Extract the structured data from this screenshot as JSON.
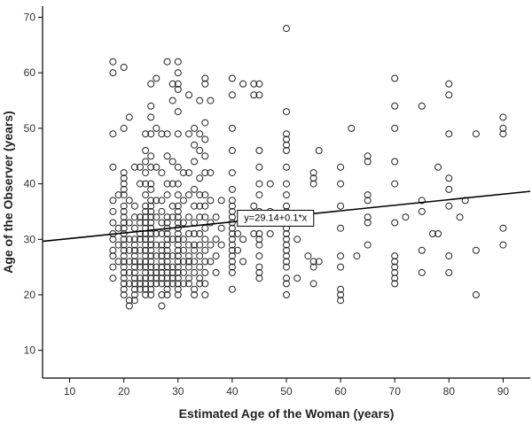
{
  "chart_data": {
    "type": "scatter",
    "xlabel": "Estimated Age of the Woman (years)",
    "ylabel": "Age of the Observer (years)",
    "xlim": [
      5,
      95
    ],
    "ylim": [
      5,
      72
    ],
    "xticks": [
      "10",
      "20",
      "30",
      "40",
      "50",
      "60",
      "70",
      "80",
      "90"
    ],
    "yticks": [
      "10",
      "20",
      "30",
      "40",
      "50",
      "60",
      "70"
    ],
    "grid": false,
    "marker": "hollow-circle",
    "regression": {
      "intercept": 29.14,
      "slope": 0.1,
      "label": "y=29.14+0.1*x",
      "label_at": [
        48,
        33.8
      ]
    },
    "points": [
      [
        18,
        62
      ],
      [
        18,
        60
      ],
      [
        20,
        61
      ],
      [
        18,
        49
      ],
      [
        18,
        43
      ],
      [
        18,
        37
      ],
      [
        18,
        35
      ],
      [
        18,
        33
      ],
      [
        18,
        31
      ],
      [
        18,
        30
      ],
      [
        18,
        28
      ],
      [
        18,
        27
      ],
      [
        18,
        25
      ],
      [
        18,
        23
      ],
      [
        19,
        38
      ],
      [
        19,
        32
      ],
      [
        19,
        29
      ],
      [
        19,
        26
      ],
      [
        20,
        50
      ],
      [
        20,
        42
      ],
      [
        20,
        41
      ],
      [
        20,
        40
      ],
      [
        20,
        39
      ],
      [
        20,
        38
      ],
      [
        20,
        36
      ],
      [
        20,
        35
      ],
      [
        20,
        34
      ],
      [
        20,
        33
      ],
      [
        20,
        32
      ],
      [
        20,
        31
      ],
      [
        20,
        30
      ],
      [
        20,
        29
      ],
      [
        20,
        28
      ],
      [
        20,
        27
      ],
      [
        20,
        26
      ],
      [
        20,
        25
      ],
      [
        20,
        24
      ],
      [
        20,
        23
      ],
      [
        20,
        22
      ],
      [
        20,
        21
      ],
      [
        20,
        20
      ],
      [
        21,
        52
      ],
      [
        21,
        37
      ],
      [
        21,
        33
      ],
      [
        21,
        30
      ],
      [
        21,
        28
      ],
      [
        21,
        26
      ],
      [
        21,
        24
      ],
      [
        21,
        22
      ],
      [
        21,
        19
      ],
      [
        21,
        18
      ],
      [
        22,
        43
      ],
      [
        22,
        36
      ],
      [
        22,
        34
      ],
      [
        22,
        32
      ],
      [
        22,
        30
      ],
      [
        22,
        29
      ],
      [
        22,
        28
      ],
      [
        22,
        27
      ],
      [
        22,
        26
      ],
      [
        22,
        25
      ],
      [
        22,
        24
      ],
      [
        22,
        23
      ],
      [
        22,
        22
      ],
      [
        22,
        21
      ],
      [
        22,
        20
      ],
      [
        22,
        19
      ],
      [
        23,
        43
      ],
      [
        23,
        40
      ],
      [
        23,
        34
      ],
      [
        23,
        33
      ],
      [
        23,
        31
      ],
      [
        23,
        30
      ],
      [
        23,
        28
      ],
      [
        23,
        26
      ],
      [
        23,
        25
      ],
      [
        23,
        23
      ],
      [
        23,
        22
      ],
      [
        23,
        21
      ],
      [
        24,
        49
      ],
      [
        24,
        46
      ],
      [
        24,
        44
      ],
      [
        24,
        42
      ],
      [
        24,
        40
      ],
      [
        24,
        38
      ],
      [
        24,
        36
      ],
      [
        24,
        35
      ],
      [
        24,
        34
      ],
      [
        24,
        33
      ],
      [
        24,
        32
      ],
      [
        24,
        31
      ],
      [
        24,
        30
      ],
      [
        24,
        29
      ],
      [
        24,
        28
      ],
      [
        24,
        27
      ],
      [
        24,
        26
      ],
      [
        24,
        25
      ],
      [
        24,
        24
      ],
      [
        24,
        23
      ],
      [
        24,
        22
      ],
      [
        24,
        21
      ],
      [
        24,
        20
      ],
      [
        25,
        58
      ],
      [
        25,
        54
      ],
      [
        25,
        52
      ],
      [
        25,
        49
      ],
      [
        25,
        45
      ],
      [
        25,
        43
      ],
      [
        25,
        40
      ],
      [
        25,
        39
      ],
      [
        25,
        37
      ],
      [
        25,
        36
      ],
      [
        25,
        35
      ],
      [
        25,
        34
      ],
      [
        25,
        33
      ],
      [
        25,
        32
      ],
      [
        25,
        31
      ],
      [
        25,
        30
      ],
      [
        25,
        29
      ],
      [
        25,
        28
      ],
      [
        25,
        27
      ],
      [
        25,
        26
      ],
      [
        25,
        25
      ],
      [
        25,
        24
      ],
      [
        25,
        23
      ],
      [
        25,
        22
      ],
      [
        25,
        21
      ],
      [
        25,
        20
      ],
      [
        26,
        59
      ],
      [
        26,
        50
      ],
      [
        26,
        43
      ],
      [
        26,
        37
      ],
      [
        26,
        34
      ],
      [
        26,
        31
      ],
      [
        26,
        29
      ],
      [
        26,
        27
      ],
      [
        26,
        25
      ],
      [
        26,
        24
      ],
      [
        26,
        23
      ],
      [
        26,
        22
      ],
      [
        27,
        49
      ],
      [
        27,
        42
      ],
      [
        27,
        37
      ],
      [
        27,
        35
      ],
      [
        27,
        33
      ],
      [
        27,
        31
      ],
      [
        27,
        29
      ],
      [
        27,
        28
      ],
      [
        27,
        27
      ],
      [
        27,
        26
      ],
      [
        27,
        25
      ],
      [
        27,
        24
      ],
      [
        27,
        23
      ],
      [
        27,
        22
      ],
      [
        27,
        20
      ],
      [
        27,
        18
      ],
      [
        28,
        62
      ],
      [
        28,
        49
      ],
      [
        28,
        45
      ],
      [
        28,
        40
      ],
      [
        28,
        38
      ],
      [
        28,
        34
      ],
      [
        28,
        33
      ],
      [
        28,
        32
      ],
      [
        28,
        31
      ],
      [
        28,
        30
      ],
      [
        28,
        29
      ],
      [
        28,
        28
      ],
      [
        28,
        27
      ],
      [
        28,
        26
      ],
      [
        28,
        25
      ],
      [
        28,
        24
      ],
      [
        28,
        23
      ],
      [
        28,
        22
      ],
      [
        28,
        21
      ],
      [
        28,
        20
      ],
      [
        29,
        58
      ],
      [
        29,
        55
      ],
      [
        29,
        44
      ],
      [
        29,
        40
      ],
      [
        29,
        36
      ],
      [
        29,
        34
      ],
      [
        29,
        30
      ],
      [
        29,
        27
      ],
      [
        29,
        25
      ],
      [
        29,
        24
      ],
      [
        29,
        23
      ],
      [
        29,
        22
      ],
      [
        30,
        62
      ],
      [
        30,
        60
      ],
      [
        30,
        58
      ],
      [
        30,
        57
      ],
      [
        30,
        53
      ],
      [
        30,
        49
      ],
      [
        30,
        43
      ],
      [
        30,
        40
      ],
      [
        30,
        38
      ],
      [
        30,
        36
      ],
      [
        30,
        35
      ],
      [
        30,
        34
      ],
      [
        30,
        33
      ],
      [
        30,
        32
      ],
      [
        30,
        31
      ],
      [
        30,
        30
      ],
      [
        30,
        29
      ],
      [
        30,
        28
      ],
      [
        30,
        27
      ],
      [
        30,
        26
      ],
      [
        30,
        25
      ],
      [
        30,
        24
      ],
      [
        30,
        23
      ],
      [
        30,
        22
      ],
      [
        30,
        21
      ],
      [
        30,
        20
      ],
      [
        31,
        42
      ],
      [
        31,
        37
      ],
      [
        31,
        33
      ],
      [
        31,
        30
      ],
      [
        31,
        28
      ],
      [
        31,
        26
      ],
      [
        31,
        24
      ],
      [
        31,
        22
      ],
      [
        32,
        56
      ],
      [
        32,
        49
      ],
      [
        32,
        42
      ],
      [
        32,
        38
      ],
      [
        32,
        34
      ],
      [
        32,
        31
      ],
      [
        32,
        29
      ],
      [
        32,
        27
      ],
      [
        32,
        26
      ],
      [
        32,
        25
      ],
      [
        32,
        23
      ],
      [
        32,
        22
      ],
      [
        33,
        50
      ],
      [
        33,
        47
      ],
      [
        33,
        44
      ],
      [
        33,
        39
      ],
      [
        33,
        36
      ],
      [
        33,
        33
      ],
      [
        33,
        31
      ],
      [
        33,
        29
      ],
      [
        33,
        28
      ],
      [
        33,
        26
      ],
      [
        33,
        24
      ],
      [
        33,
        21
      ],
      [
        33,
        20
      ],
      [
        34,
        55
      ],
      [
        34,
        49
      ],
      [
        34,
        46
      ],
      [
        34,
        41
      ],
      [
        34,
        38
      ],
      [
        34,
        36
      ],
      [
        34,
        34
      ],
      [
        34,
        31
      ],
      [
        34,
        29
      ],
      [
        34,
        27
      ],
      [
        34,
        25
      ],
      [
        34,
        23
      ],
      [
        34,
        22
      ],
      [
        35,
        59
      ],
      [
        35,
        58
      ],
      [
        35,
        51
      ],
      [
        35,
        48
      ],
      [
        35,
        45
      ],
      [
        35,
        42
      ],
      [
        35,
        38
      ],
      [
        35,
        36
      ],
      [
        35,
        34
      ],
      [
        35,
        32
      ],
      [
        35,
        30
      ],
      [
        35,
        28
      ],
      [
        35,
        26
      ],
      [
        35,
        24
      ],
      [
        35,
        22
      ],
      [
        35,
        20
      ],
      [
        36,
        55
      ],
      [
        36,
        42
      ],
      [
        36,
        37
      ],
      [
        36,
        33
      ],
      [
        36,
        29
      ],
      [
        36,
        26
      ],
      [
        37,
        34
      ],
      [
        37,
        30
      ],
      [
        37,
        27
      ],
      [
        37,
        24
      ],
      [
        38,
        37
      ],
      [
        38,
        32
      ],
      [
        38,
        29
      ],
      [
        40,
        59
      ],
      [
        40,
        56
      ],
      [
        40,
        50
      ],
      [
        40,
        46
      ],
      [
        40,
        42
      ],
      [
        40,
        39
      ],
      [
        40,
        37
      ],
      [
        40,
        36
      ],
      [
        40,
        35
      ],
      [
        40,
        34
      ],
      [
        40,
        33
      ],
      [
        40,
        32
      ],
      [
        40,
        31
      ],
      [
        40,
        30
      ],
      [
        40,
        29
      ],
      [
        40,
        28
      ],
      [
        40,
        27
      ],
      [
        40,
        26
      ],
      [
        40,
        25
      ],
      [
        40,
        24
      ],
      [
        40,
        21
      ],
      [
        41,
        31
      ],
      [
        41,
        28
      ],
      [
        42,
        58
      ],
      [
        42,
        30
      ],
      [
        42,
        26
      ],
      [
        44,
        58
      ],
      [
        44,
        56
      ],
      [
        44,
        36
      ],
      [
        44,
        31
      ],
      [
        45,
        58
      ],
      [
        45,
        56
      ],
      [
        45,
        46
      ],
      [
        45,
        43
      ],
      [
        45,
        40
      ],
      [
        45,
        38
      ],
      [
        45,
        35
      ],
      [
        45,
        33
      ],
      [
        45,
        31
      ],
      [
        45,
        30
      ],
      [
        45,
        29
      ],
      [
        45,
        27
      ],
      [
        45,
        25
      ],
      [
        45,
        24
      ],
      [
        45,
        23
      ],
      [
        47,
        40
      ],
      [
        47,
        35
      ],
      [
        47,
        31
      ],
      [
        50,
        68
      ],
      [
        50,
        53
      ],
      [
        50,
        49
      ],
      [
        50,
        48
      ],
      [
        50,
        47
      ],
      [
        50,
        46
      ],
      [
        50,
        43
      ],
      [
        50,
        40
      ],
      [
        50,
        38
      ],
      [
        50,
        36
      ],
      [
        50,
        35
      ],
      [
        50,
        34
      ],
      [
        50,
        33
      ],
      [
        50,
        32
      ],
      [
        50,
        31
      ],
      [
        50,
        30
      ],
      [
        50,
        29
      ],
      [
        50,
        28
      ],
      [
        50,
        27
      ],
      [
        50,
        26
      ],
      [
        50,
        25
      ],
      [
        50,
        23
      ],
      [
        50,
        22
      ],
      [
        50,
        20
      ],
      [
        52,
        30
      ],
      [
        52,
        23
      ],
      [
        54,
        27
      ],
      [
        55,
        42
      ],
      [
        55,
        41
      ],
      [
        55,
        40
      ],
      [
        55,
        26
      ],
      [
        55,
        25
      ],
      [
        55,
        22
      ],
      [
        56,
        46
      ],
      [
        56,
        26
      ],
      [
        60,
        43
      ],
      [
        60,
        40
      ],
      [
        60,
        36
      ],
      [
        60,
        32
      ],
      [
        60,
        27
      ],
      [
        60,
        25
      ],
      [
        60,
        21
      ],
      [
        60,
        20
      ],
      [
        60,
        19
      ],
      [
        62,
        50
      ],
      [
        63,
        27
      ],
      [
        65,
        45
      ],
      [
        65,
        44
      ],
      [
        65,
        38
      ],
      [
        65,
        37
      ],
      [
        65,
        34
      ],
      [
        65,
        33
      ],
      [
        65,
        29
      ],
      [
        70,
        59
      ],
      [
        70,
        54
      ],
      [
        70,
        50
      ],
      [
        70,
        44
      ],
      [
        70,
        40
      ],
      [
        70,
        33
      ],
      [
        70,
        27
      ],
      [
        70,
        26
      ],
      [
        70,
        25
      ],
      [
        70,
        24
      ],
      [
        70,
        23
      ],
      [
        70,
        22
      ],
      [
        72,
        34
      ],
      [
        75,
        54
      ],
      [
        75,
        37
      ],
      [
        75,
        35
      ],
      [
        75,
        28
      ],
      [
        75,
        24
      ],
      [
        77,
        31
      ],
      [
        78,
        43
      ],
      [
        78,
        31
      ],
      [
        80,
        58
      ],
      [
        80,
        56
      ],
      [
        80,
        49
      ],
      [
        80,
        41
      ],
      [
        80,
        39
      ],
      [
        80,
        36
      ],
      [
        80,
        27
      ],
      [
        80,
        24
      ],
      [
        82,
        34
      ],
      [
        83,
        37
      ],
      [
        85,
        49
      ],
      [
        85,
        28
      ],
      [
        85,
        20
      ],
      [
        90,
        52
      ],
      [
        90,
        50
      ],
      [
        90,
        49
      ],
      [
        90,
        32
      ],
      [
        90,
        29
      ]
    ]
  }
}
